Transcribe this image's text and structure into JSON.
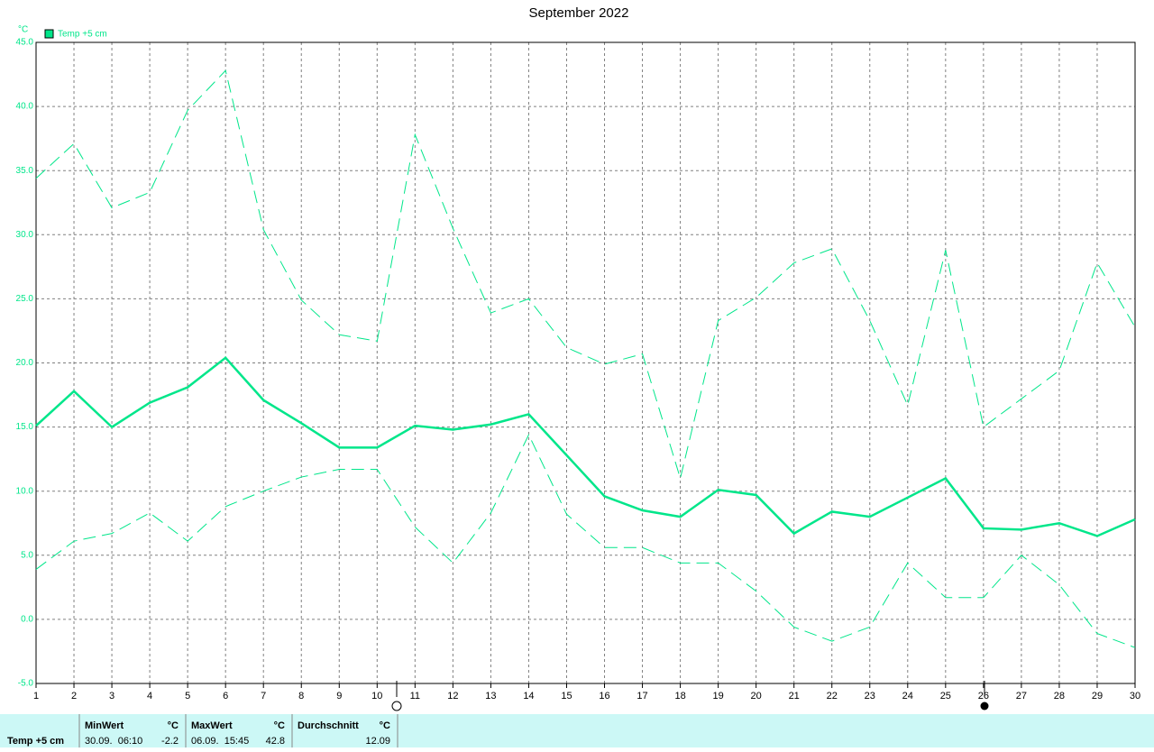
{
  "chart_data": {
    "type": "line",
    "title": "September 2022",
    "unit": "°C",
    "legend": {
      "label": "Temp +5 cm",
      "color": "#00e68a"
    },
    "x": [
      1,
      2,
      3,
      4,
      5,
      6,
      7,
      8,
      9,
      10,
      11,
      12,
      13,
      14,
      15,
      16,
      17,
      18,
      19,
      20,
      21,
      22,
      23,
      24,
      25,
      26,
      27,
      28,
      29,
      30
    ],
    "xlim": [
      1,
      30
    ],
    "xticks": [
      1,
      2,
      3,
      4,
      5,
      6,
      7,
      8,
      9,
      10,
      11,
      12,
      13,
      14,
      15,
      16,
      17,
      18,
      19,
      20,
      21,
      22,
      23,
      24,
      25,
      26,
      27,
      28,
      29,
      30
    ],
    "ylim": [
      -5,
      45
    ],
    "yticks": [
      {
        "value": -5,
        "label": "-5.0"
      },
      {
        "value": 0,
        "label": "0.0"
      },
      {
        "value": 5,
        "label": "5.0"
      },
      {
        "value": 10,
        "label": "10.0"
      },
      {
        "value": 15,
        "label": "15.0"
      },
      {
        "value": 20,
        "label": "20.0"
      },
      {
        "value": 25,
        "label": "25.0"
      },
      {
        "value": 30,
        "label": "30.0"
      },
      {
        "value": 35,
        "label": "35.0"
      },
      {
        "value": 40,
        "label": "40.0"
      },
      {
        "value": 45,
        "label": "45.0"
      }
    ],
    "grid": true,
    "series": [
      {
        "color": "#00e68a",
        "dashed": true,
        "values": [
          34.4,
          37.1,
          32.1,
          33.3,
          39.7,
          42.8,
          30.4,
          24.9,
          22.2,
          21.7,
          37.8,
          30.5,
          23.9,
          25.0,
          21.2,
          19.9,
          20.7,
          11.0,
          23.3,
          25.1,
          27.8,
          28.9,
          23.3,
          16.7,
          28.8,
          15.0,
          17.2,
          19.4,
          27.8,
          22.8
        ]
      },
      {
        "color": "#00e68a",
        "dashed": false,
        "values": [
          15.1,
          17.8,
          15.0,
          16.9,
          18.1,
          20.4,
          17.1,
          15.3,
          13.4,
          13.4,
          15.1,
          14.8,
          15.2,
          16.0,
          12.8,
          9.6,
          8.5,
          8.0,
          10.1,
          9.7,
          6.7,
          8.4,
          8.0,
          9.5,
          11.0,
          7.1,
          7.0,
          7.5,
          6.5,
          7.8
        ]
      },
      {
        "color": "#00e68a",
        "dashed": true,
        "values": [
          3.9,
          6.1,
          6.7,
          8.3,
          6.1,
          8.8,
          10.0,
          11.1,
          11.7,
          11.7,
          7.2,
          4.4,
          8.3,
          14.4,
          8.2,
          5.6,
          5.6,
          4.4,
          4.4,
          2.2,
          -0.6,
          -1.7,
          -0.6,
          4.4,
          1.7,
          1.7,
          5.0,
          2.7,
          -1.1,
          -2.2
        ]
      }
    ]
  },
  "summary": {
    "label": "Temp +5 cm",
    "columns": [
      {
        "header": "MinWert",
        "unit": "°C",
        "time": "30.09.  06:10",
        "value": -2.2
      },
      {
        "header": "MaxWert",
        "unit": "°C",
        "time": "06.09.  15:45",
        "value": 42.8
      },
      {
        "header": "Durchschnitt",
        "unit": "°C",
        "value": 12.09
      }
    ]
  }
}
